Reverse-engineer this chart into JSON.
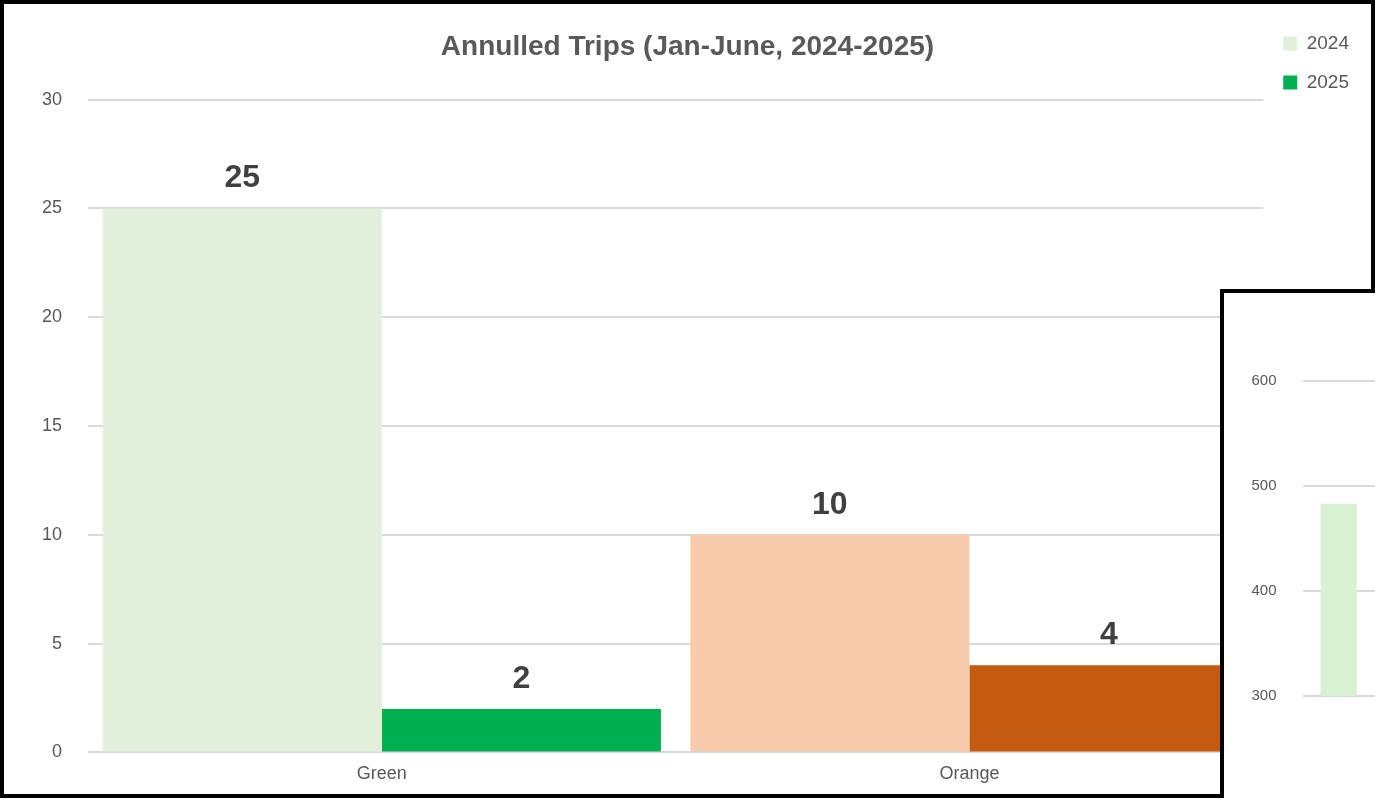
{
  "chart_data": [
    {
      "type": "bar",
      "title": "Annulled Trips (Jan-June, 2024-2025)",
      "categories": [
        "Green",
        "Orange"
      ],
      "series": [
        {
          "name": "2024",
          "colors": [
            "#e2efda",
            "#f8cbad"
          ],
          "values": [
            25,
            10
          ]
        },
        {
          "name": "2025",
          "colors": [
            "#00b050",
            "#c55a11"
          ],
          "values": [
            2,
            4
          ]
        }
      ],
      "ylim": [
        0,
        30
      ],
      "yticks": [
        0,
        5,
        10,
        15,
        20,
        25,
        30
      ],
      "grid": "y",
      "legend": "right",
      "data_labels": true
    },
    {
      "type": "bar",
      "categories": [
        null
      ],
      "values": [
        483
      ],
      "color": "#d9f0d3",
      "ylim": [
        300,
        600
      ],
      "yticks": [
        300,
        400,
        500,
        600
      ],
      "grid": "y"
    }
  ]
}
